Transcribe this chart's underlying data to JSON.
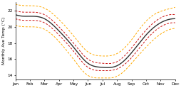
{
  "months": [
    "Jan",
    "Feb",
    "Mar",
    "Apr",
    "May",
    "Jun",
    "Jul",
    "Aug",
    "Sep",
    "Oct",
    "Nov",
    "Dec"
  ],
  "median": [
    21.5,
    21.3,
    21.0,
    19.5,
    17.5,
    15.5,
    15.0,
    15.2,
    16.8,
    19.0,
    20.5,
    21.0
  ],
  "p25": [
    21.0,
    20.8,
    20.5,
    19.0,
    17.0,
    15.0,
    14.6,
    14.8,
    16.2,
    18.4,
    20.0,
    20.5
  ],
  "p75": [
    22.0,
    21.8,
    21.5,
    20.0,
    18.0,
    16.0,
    15.5,
    15.7,
    17.4,
    19.6,
    21.1,
    21.5
  ],
  "min_line": [
    20.2,
    20.0,
    19.7,
    18.2,
    16.0,
    14.0,
    13.7,
    13.9,
    15.5,
    17.5,
    19.1,
    19.8
  ],
  "max_line": [
    22.8,
    22.6,
    22.3,
    20.9,
    18.9,
    16.9,
    16.4,
    16.7,
    18.4,
    20.7,
    21.9,
    22.4
  ],
  "ylim": [
    13.5,
    23.0
  ],
  "yticks": [
    14,
    16,
    18,
    20,
    22
  ],
  "ylabel": "Monthly Ave Temp (°C)",
  "median_color": "#333333",
  "p25_color": "#cc1111",
  "p75_color": "#cc1111",
  "min_color": "#ffaa00",
  "max_color": "#ffaa00",
  "bg_color": "#ffffff"
}
